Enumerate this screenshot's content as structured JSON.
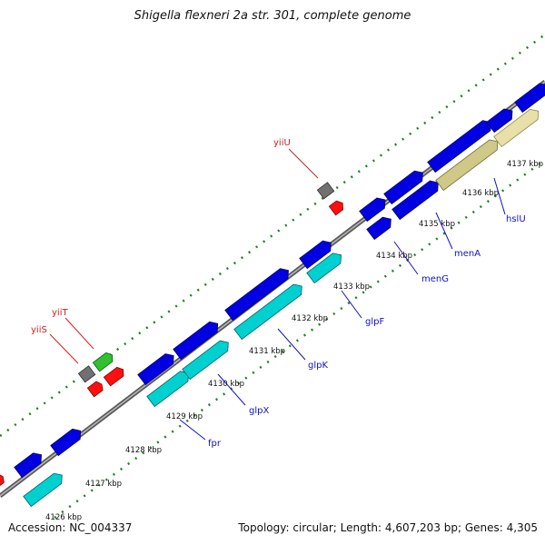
{
  "title": "Shigella flexneri 2a str. 301, complete genome",
  "footer": {
    "accession": "Accession: NC_004337",
    "summary": "Topology: circular; Length: 4,607,203 bp; Genes: 4,305"
  },
  "colors": {
    "backbone": "#7a7a7a",
    "forward_cds": "#0000e0",
    "reverse_cds": "#00d0d0",
    "special_cds": "#cfc888",
    "hypothetical": "#707070",
    "trna_red": "#ff1010",
    "trna_green": "#30c030",
    "tick_dot": "#208020",
    "label_blue": "#1010c0",
    "label_red": "#cc2020"
  },
  "ruler_labels": [
    "4126 kbp",
    "4127 kbp",
    "4128 kbp",
    "4129 kbp",
    "4130 kbp",
    "4131 kbp",
    "4132 kbp",
    "4133 kbp",
    "4134 kbp",
    "4135 kbp",
    "4136 kbp",
    "4137 kbp"
  ],
  "gene_labels": [
    {
      "name": "yiiS",
      "color": "red"
    },
    {
      "name": "yiiT",
      "color": "red"
    },
    {
      "name": "yiiU",
      "color": "red"
    },
    {
      "name": "fpr",
      "color": "blue"
    },
    {
      "name": "glpX",
      "color": "blue"
    },
    {
      "name": "glpK",
      "color": "blue"
    },
    {
      "name": "glpF",
      "color": "blue"
    },
    {
      "name": "menG",
      "color": "blue"
    },
    {
      "name": "menA",
      "color": "blue"
    },
    {
      "name": "hslU",
      "color": "blue"
    }
  ]
}
